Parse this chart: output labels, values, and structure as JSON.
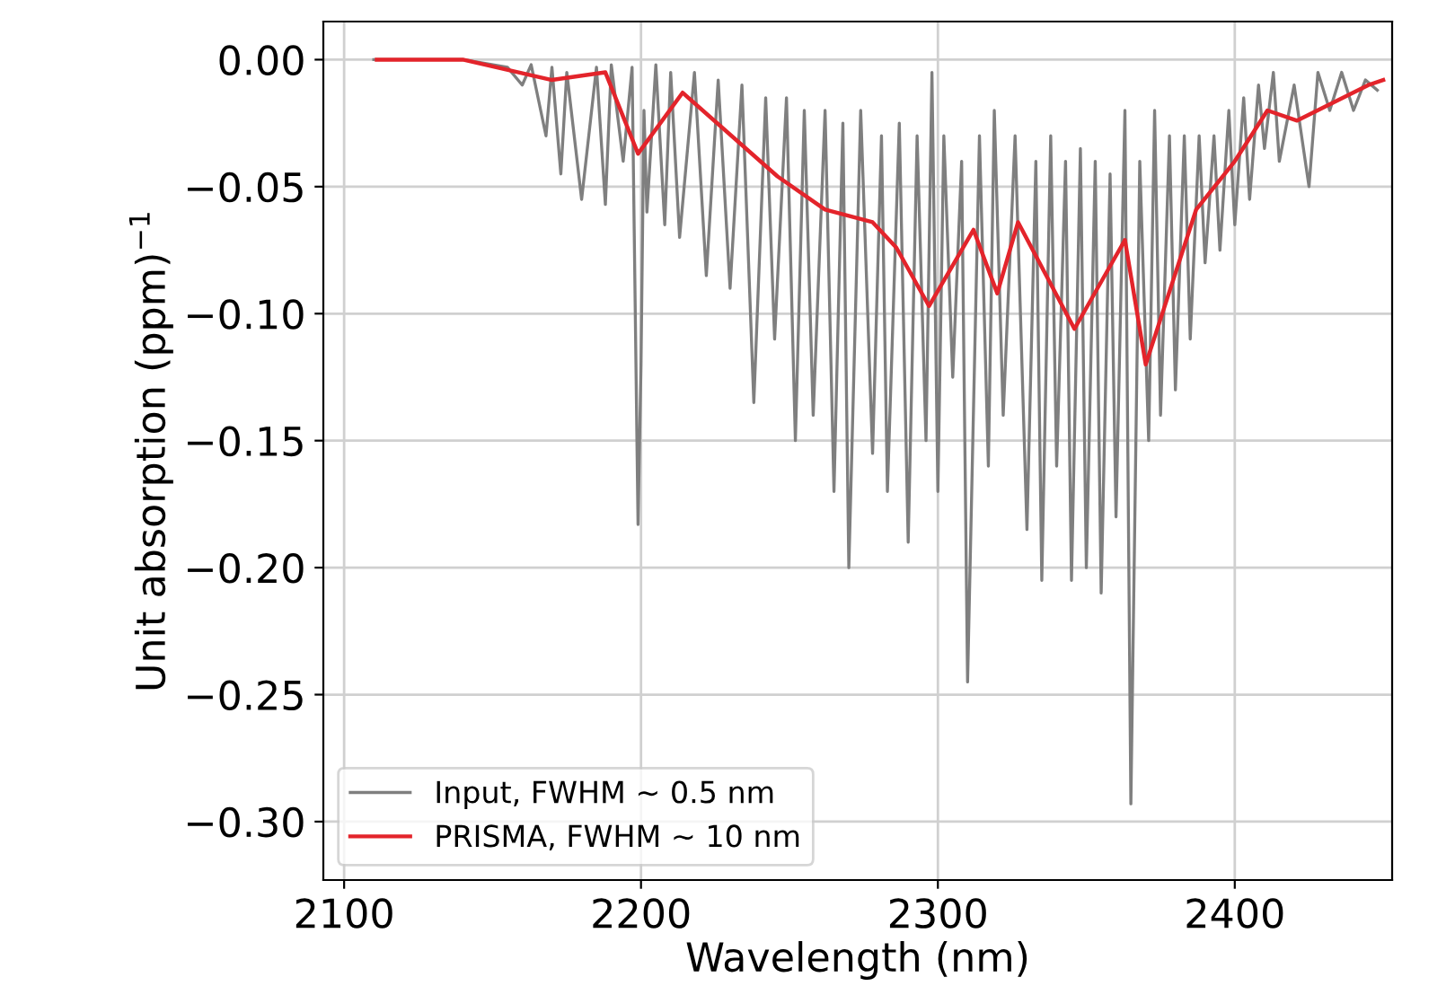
{
  "chart_data": {
    "type": "line",
    "xlabel": "Wavelength (nm)",
    "ylabel": "Unit absorption (ppm)$^{−1}$",
    "xlim": [
      2093,
      2453
    ],
    "xticks": [
      2100,
      2200,
      2300,
      2400
    ],
    "ylim": [
      -0.323,
      0.015
    ],
    "yticks": [
      {
        "value": 0,
        "label": "0.00"
      },
      {
        "value": -0.05,
        "label": "−0.05"
      },
      {
        "value": -0.1,
        "label": "−0.10"
      },
      {
        "value": -0.15,
        "label": "−0.15"
      },
      {
        "value": -0.2,
        "label": "−0.20"
      },
      {
        "value": -0.25,
        "label": "−0.25"
      },
      {
        "value": -0.3,
        "label": "−0.30"
      }
    ],
    "grid": true,
    "legend": "bottom left",
    "line_style": "solid",
    "marker": "none",
    "series": [
      {
        "name": "Input, FWHM ~ 0.5 nm",
        "color": "#7f7f7f",
        "x": [
          2110,
          2140,
          2155,
          2160,
          2163,
          2168,
          2170,
          2173,
          2175,
          2180,
          2185,
          2188,
          2190,
          2194,
          2197,
          2199,
          2200,
          2201,
          2202,
          2205,
          2208,
          2210,
          2213,
          2218,
          2222,
          2226,
          2230,
          2234,
          2238,
          2242,
          2245,
          2249,
          2252,
          2255,
          2258,
          2262,
          2265,
          2268,
          2270,
          2274,
          2278,
          2281,
          2283,
          2287,
          2290,
          2293,
          2296,
          2298,
          2300,
          2302,
          2305,
          2308,
          2310,
          2314,
          2317,
          2319,
          2322,
          2326,
          2330,
          2333,
          2335,
          2338,
          2340,
          2343,
          2345,
          2348,
          2350,
          2353,
          2355,
          2358,
          2360,
          2363,
          2365,
          2368,
          2371,
          2373,
          2375,
          2378,
          2380,
          2383,
          2385,
          2388,
          2390,
          2393,
          2395,
          2398,
          2400,
          2403,
          2405,
          2408,
          2410,
          2413,
          2415,
          2420,
          2425,
          2428,
          2432,
          2436,
          2440,
          2444,
          2448
        ],
        "values": [
          0,
          0,
          -0.003,
          -0.01,
          -0.002,
          -0.03,
          -0.003,
          -0.045,
          -0.005,
          -0.055,
          -0.003,
          -0.057,
          -0.002,
          -0.04,
          -0.003,
          -0.183,
          -0.12,
          -0.02,
          -0.06,
          -0.002,
          -0.065,
          -0.005,
          -0.07,
          -0.005,
          -0.085,
          -0.008,
          -0.09,
          -0.01,
          -0.135,
          -0.015,
          -0.11,
          -0.015,
          -0.15,
          -0.02,
          -0.14,
          -0.02,
          -0.17,
          -0.025,
          -0.2,
          -0.02,
          -0.155,
          -0.03,
          -0.17,
          -0.025,
          -0.19,
          -0.03,
          -0.15,
          -0.005,
          -0.17,
          -0.03,
          -0.125,
          -0.04,
          -0.245,
          -0.03,
          -0.16,
          -0.02,
          -0.14,
          -0.03,
          -0.185,
          -0.04,
          -0.205,
          -0.03,
          -0.16,
          -0.04,
          -0.205,
          -0.035,
          -0.2,
          -0.04,
          -0.21,
          -0.045,
          -0.18,
          -0.02,
          -0.293,
          -0.04,
          -0.15,
          -0.02,
          -0.14,
          -0.03,
          -0.13,
          -0.03,
          -0.11,
          -0.03,
          -0.08,
          -0.03,
          -0.075,
          -0.02,
          -0.065,
          -0.015,
          -0.055,
          -0.01,
          -0.035,
          -0.005,
          -0.04,
          -0.01,
          -0.05,
          -0.005,
          -0.02,
          -0.005,
          -0.02,
          -0.008,
          -0.012
        ]
      },
      {
        "name": "PRISMA, FWHM ~ 10 nm",
        "color": "#e3242b",
        "x": [
          2111,
          2140,
          2170,
          2188,
          2199,
          2214,
          2246,
          2262,
          2278,
          2286,
          2297,
          2312,
          2320,
          2327,
          2346,
          2363,
          2370,
          2387,
          2400,
          2411,
          2421,
          2445,
          2450
        ],
        "values": [
          0,
          0,
          -0.008,
          -0.005,
          -0.037,
          -0.013,
          -0.046,
          -0.059,
          -0.064,
          -0.074,
          -0.097,
          -0.067,
          -0.092,
          -0.064,
          -0.106,
          -0.071,
          -0.12,
          -0.059,
          -0.04,
          -0.02,
          -0.024,
          -0.01,
          -0.008
        ]
      }
    ]
  }
}
